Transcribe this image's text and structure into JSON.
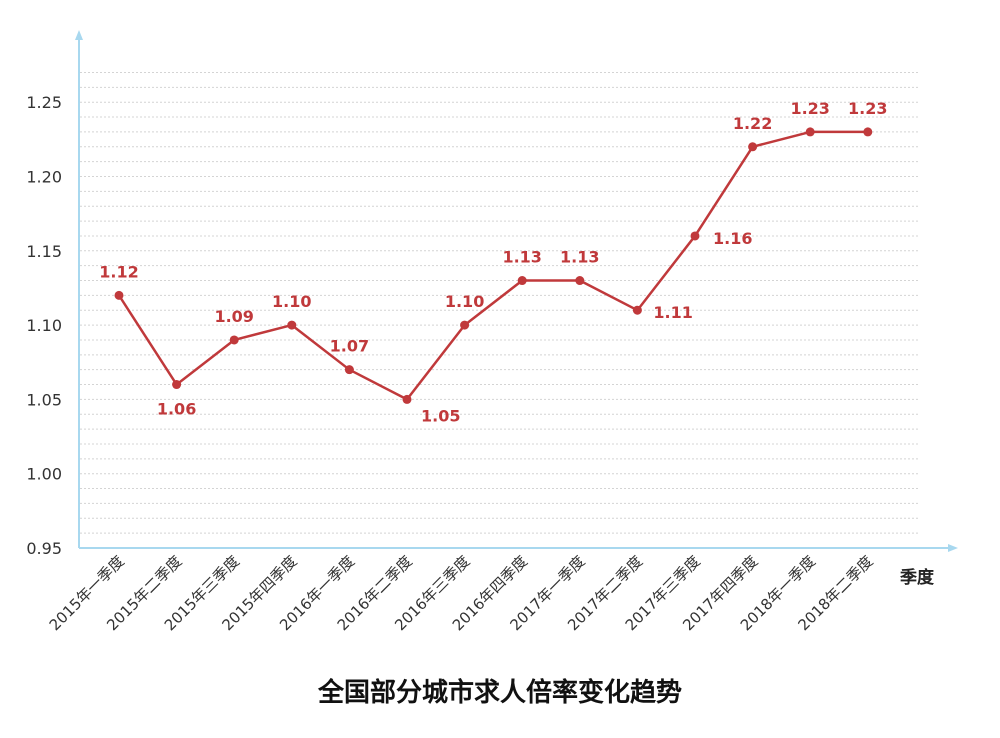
{
  "chart_data": {
    "type": "line",
    "title": "全国部分城市求人倍率变化趋势",
    "xlabel": "季度",
    "ylabel": "",
    "categories": [
      "2015年一季度",
      "2015年二季度",
      "2015年三季度",
      "2015年四季度",
      "2016年一季度",
      "2016年二季度",
      "2016年三季度",
      "2016年四季度",
      "2017年一季度",
      "2017年二季度",
      "2017年三季度",
      "2017年四季度",
      "2018年一季度",
      "2018年二季度"
    ],
    "series": [
      {
        "values": [
          1.12,
          1.06,
          1.09,
          1.1,
          1.07,
          1.05,
          1.1,
          1.13,
          1.13,
          1.11,
          1.16,
          1.22,
          1.23,
          1.23
        ]
      }
    ],
    "data_labels": [
      "1.12",
      "1.06",
      "1.09",
      "1.10",
      "1.07",
      "1.05",
      "1.10",
      "1.13",
      "1.13",
      "1.11",
      "1.16",
      "1.22",
      "1.23",
      "1.23"
    ],
    "ylim": [
      0.95,
      1.27
    ],
    "yticks": [
      0.95,
      1.0,
      1.05,
      1.1,
      1.15,
      1.2,
      1.25
    ],
    "ytick_labels": [
      "0.95",
      "1.00",
      "1.05",
      "1.10",
      "1.15",
      "1.20",
      "1.25"
    ],
    "grid": true,
    "legend": "none",
    "colors": {
      "series": "#c0393b",
      "axis": "#a8d8ef",
      "grid": "#d4d4d4"
    }
  }
}
